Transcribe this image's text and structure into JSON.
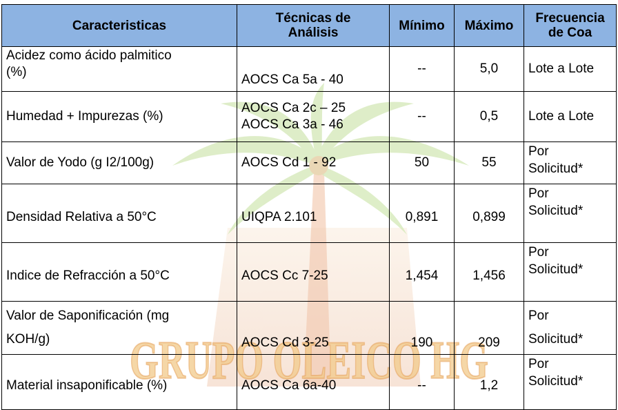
{
  "table": {
    "headers": {
      "characteristics": "Caracteristicas",
      "technique_line1": "Técnicas de",
      "technique_line2": "Análisis",
      "minimum": "Mínimo",
      "maximum": "Máximo",
      "frequency_line1": "Frecuencia",
      "frequency_line2": "de Coa"
    },
    "rows": [
      {
        "characteristic_line1": "Acidez como ácido palmitico",
        "characteristic_line2": "(%)",
        "technique_line1": "AOCS Ca 5a - 40",
        "technique_line2": "",
        "minimum": "--",
        "maximum": "5,0",
        "frequency_line1": "Lote a Lote",
        "frequency_line2": ""
      },
      {
        "characteristic_line1": "Humedad + Impurezas (%)",
        "characteristic_line2": "",
        "technique_line1": "AOCS Ca 2c – 25",
        "technique_line2": "AOCS Ca 3a - 46",
        "minimum": "--",
        "maximum": "0,5",
        "frequency_line1": "Lote a Lote",
        "frequency_line2": ""
      },
      {
        "characteristic_line1": "Valor de Yodo (g I2/100g)",
        "characteristic_line2": "",
        "technique_line1": "AOCS Cd 1 - 92",
        "technique_line2": "",
        "minimum": "50",
        "maximum": "55",
        "frequency_line1": "Por",
        "frequency_line2": "Solicitud*"
      },
      {
        "characteristic_line1": "Densidad Relativa a 50°C",
        "characteristic_line2": "",
        "technique_line1": "UIQPA 2.101",
        "technique_line2": "",
        "minimum": "0,891",
        "maximum": "0,899",
        "frequency_line1": "Por",
        "frequency_line2": "Solicitud*"
      },
      {
        "characteristic_line1": "Indice de Refracción a 50°C",
        "characteristic_line2": "",
        "technique_line1": "AOCS Cc 7-25",
        "technique_line2": "",
        "minimum": "1,454",
        "maximum": "1,456",
        "frequency_line1": "Por",
        "frequency_line2": "Solicitud*"
      },
      {
        "characteristic_line1": "Valor de Saponificación (mg",
        "characteristic_line2": "KOH/g)",
        "technique_line1": "AOCS Cd 3-25",
        "technique_line2": "",
        "minimum": "190",
        "maximum": "209",
        "frequency_line1": "Por",
        "frequency_line2": "Solicitud*"
      },
      {
        "characteristic_line1": "Material insaponificable (%)",
        "characteristic_line2": "",
        "technique_line1": "AOCS Ca 6a-40",
        "technique_line2": "",
        "minimum": "--",
        "maximum": "1,2",
        "frequency_line1": "Por",
        "frequency_line2": "Solicitud*"
      }
    ]
  },
  "watermark": {
    "text": "GRUPO OLEICO HG",
    "icon": "palm-tree-logo",
    "colors": {
      "text": "#f2c98a",
      "palm": "#b9d98a",
      "trunk": "#e8a277",
      "shade": "#e7b98a"
    }
  }
}
